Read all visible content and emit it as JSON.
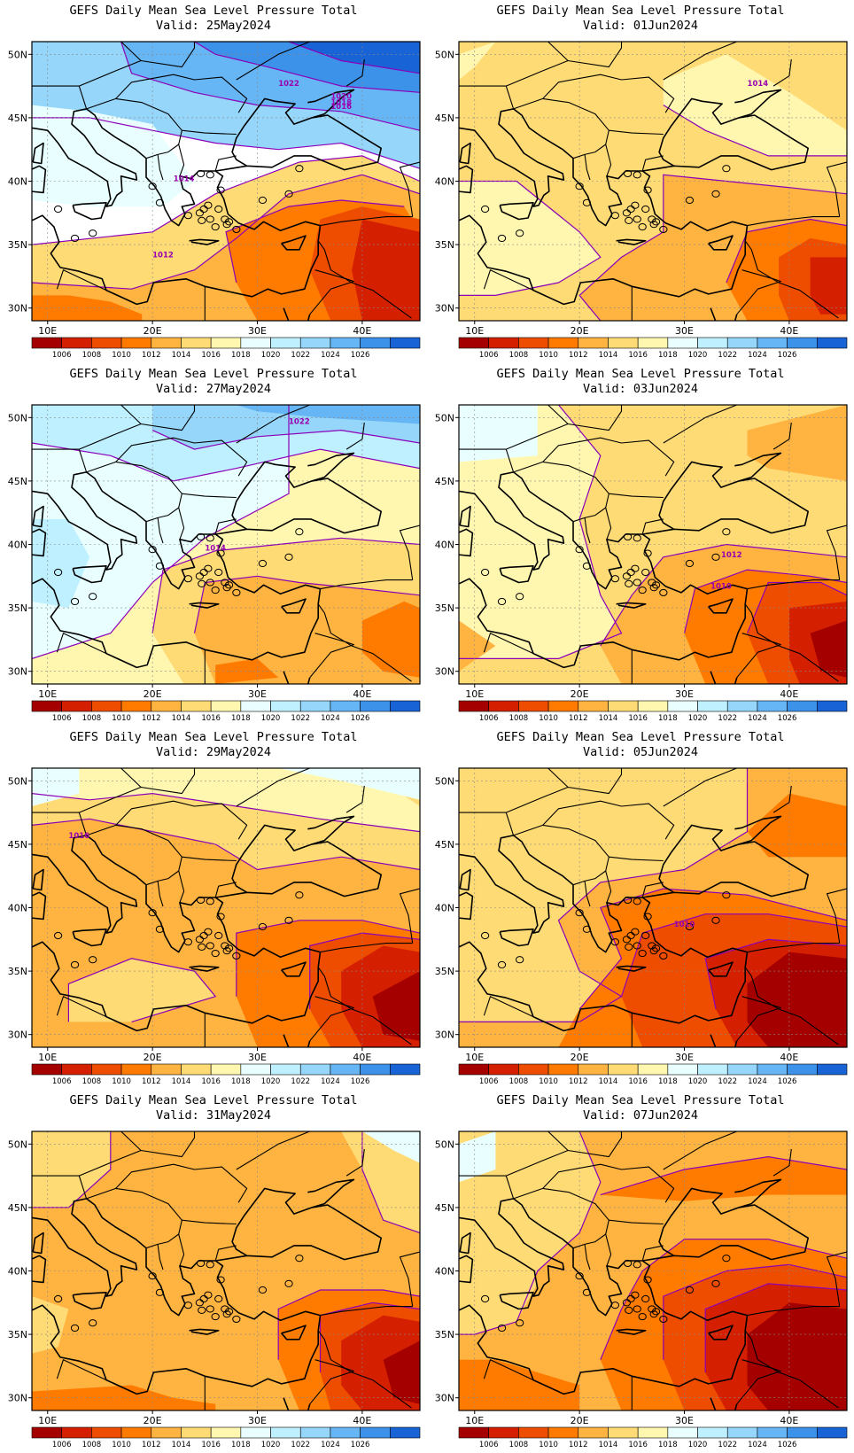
{
  "figure": {
    "title_text": "GEFS Daily Mean Sea Level Pressure Total",
    "valid_prefix": "Valid:"
  },
  "panels": [
    {
      "valid": "25May2024",
      "scene": "high_north",
      "contour_labels": [
        "1022",
        "1020",
        "1018",
        "1016",
        "1014",
        "1012"
      ]
    },
    {
      "valid": "01Jun2024",
      "scene": "warm_mild",
      "contour_labels": [
        "1014"
      ]
    },
    {
      "valid": "27May2024",
      "scene": "high_west",
      "contour_labels": [
        "1022",
        "1014"
      ]
    },
    {
      "valid": "03Jun2024",
      "scene": "low_east",
      "contour_labels": [
        "1012",
        "1010"
      ]
    },
    {
      "valid": "29May2024",
      "scene": "mid_warm",
      "contour_labels": [
        "1016"
      ]
    },
    {
      "valid": "05Jun2024",
      "scene": "low_strong",
      "contour_labels": [
        "1010"
      ]
    },
    {
      "valid": "31May2024",
      "scene": "mid_orange",
      "contour_labels": []
    },
    {
      "valid": "07Jun2024",
      "scene": "low_deep",
      "contour_labels": []
    }
  ],
  "map": {
    "lon_ticks": [
      "10E",
      "20E",
      "30E",
      "40E"
    ],
    "lat_ticks": [
      "50N",
      "45N",
      "40N",
      "35N",
      "30N"
    ],
    "lon_values": [
      10,
      20,
      30,
      40
    ],
    "lat_values": [
      50,
      45,
      40,
      35,
      30
    ],
    "lon_range": [
      8.5,
      45.5
    ],
    "lat_range": [
      29,
      51
    ]
  },
  "colorbar": {
    "labels": [
      "1006",
      "1008",
      "1010",
      "1012",
      "1014",
      "1016",
      "1018",
      "1020",
      "1022",
      "1024",
      "1026"
    ],
    "colors": [
      "#a50000",
      "#d42000",
      "#ee4d00",
      "#ff7b00",
      "#ffb341",
      "#ffdb76",
      "#fff7b0",
      "#e9ffff",
      "#bff0ff",
      "#95d6fa",
      "#66b5f4",
      "#3c92e9",
      "#1863d5"
    ]
  },
  "colors": {
    "contour": "#8c00b9",
    "coast": "#000000"
  }
}
